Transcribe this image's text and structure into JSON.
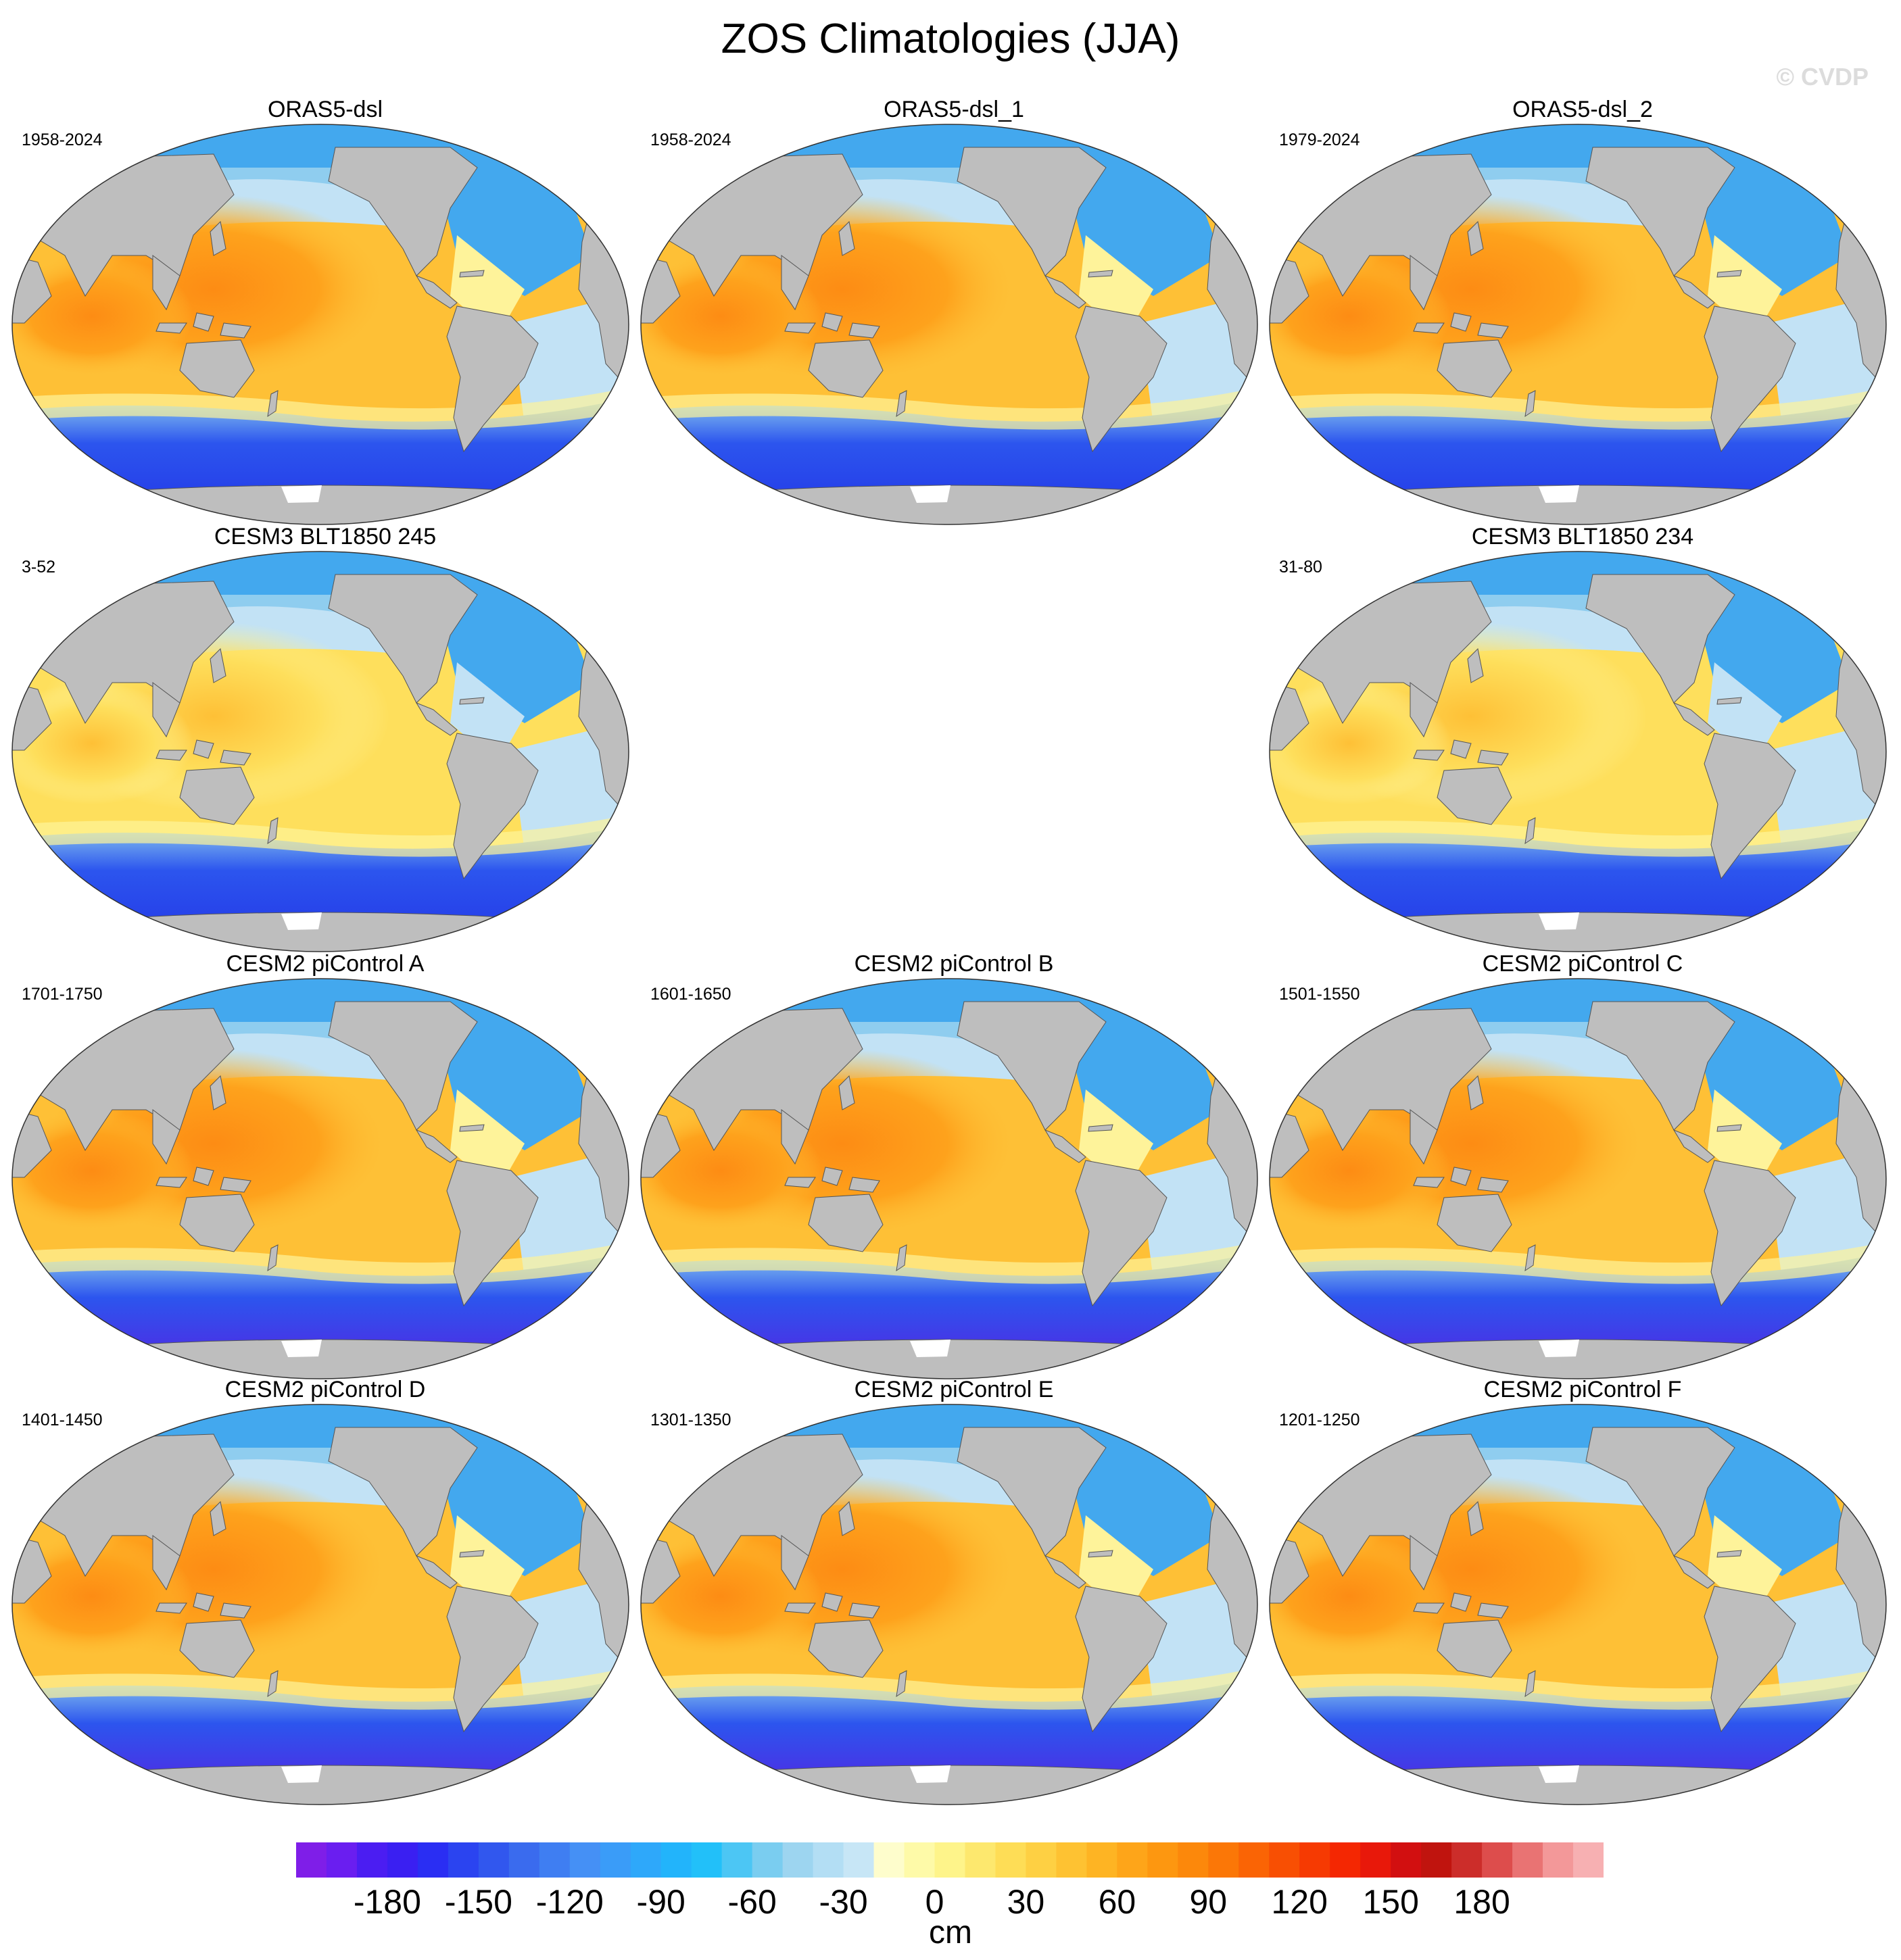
{
  "title": "ZOS Climatologies (JJA)",
  "watermark": "© CVDP",
  "panels": [
    {
      "title": "ORAS5-dsl",
      "period": "1958-2024",
      "variant": "obs"
    },
    {
      "title": "ORAS5-dsl_1",
      "period": "1958-2024",
      "variant": "obs"
    },
    {
      "title": "ORAS5-dsl_2",
      "period": "1979-2024",
      "variant": "obs"
    },
    {
      "title": "CESM3 BLT1850 245",
      "period": "3-52",
      "variant": "cesm3"
    },
    {
      "title": "CESM3 BLT1850 234",
      "period": "31-80",
      "variant": "cesm3"
    },
    {
      "title": "CESM2 piControl A",
      "period": "1701-1750",
      "variant": "cesm2"
    },
    {
      "title": "CESM2 piControl B",
      "period": "1601-1650",
      "variant": "cesm2"
    },
    {
      "title": "CESM2 piControl C",
      "period": "1501-1550",
      "variant": "cesm2"
    },
    {
      "title": "CESM2 piControl D",
      "period": "1401-1450",
      "variant": "cesm2"
    },
    {
      "title": "CESM2 piControl E",
      "period": "1301-1350",
      "variant": "cesm2"
    },
    {
      "title": "CESM2 piControl F",
      "period": "1201-1250",
      "variant": "cesm2"
    }
  ],
  "colorbar": {
    "units": "cm",
    "labels": [
      "-180",
      "-150",
      "-120",
      "-90",
      "-60",
      "-30",
      "0",
      "30",
      "60",
      "90",
      "120",
      "150",
      "180"
    ],
    "colors": [
      "#7f1ee8",
      "#6a1ef0",
      "#4b1df2",
      "#3a1ff2",
      "#2a2ef3",
      "#2b44f0",
      "#3157ee",
      "#3a6bee",
      "#3f7ef2",
      "#4590f5",
      "#3a9cf8",
      "#2ea8fa",
      "#22b4fb",
      "#22c0f9",
      "#4cc6f4",
      "#7acdf0",
      "#9dd5f0",
      "#b3def4",
      "#c7e6f6",
      "#fefdcc",
      "#fefaa8",
      "#fef48a",
      "#fde86e",
      "#fedd56",
      "#fed043",
      "#fec232",
      "#feb423",
      "#fea519",
      "#fd9710",
      "#fc880b",
      "#fb7707",
      "#fa6405",
      "#f84f03",
      "#f63a02",
      "#f42702",
      "#e8180a",
      "#d20f10",
      "#c0140e",
      "#cc2d2a",
      "#dd4d4c",
      "#e97373",
      "#f39899",
      "#f7b0b2"
    ],
    "min": -210,
    "max": 220
  },
  "map_colors": {
    "land": "#bebebe",
    "warm_core": "#fd8c14",
    "warm": "#fea21c",
    "midwarm": "#fec036",
    "yellow": "#fedf5c",
    "pale_yellow": "#fef39a",
    "pale_blue": "#c2e2f5",
    "light_blue": "#8fcdef",
    "blue": "#43a8ee",
    "deep_blue": "#2c55ee",
    "southern_blue": "#2233e6",
    "purple": "#5a1ee0"
  }
}
